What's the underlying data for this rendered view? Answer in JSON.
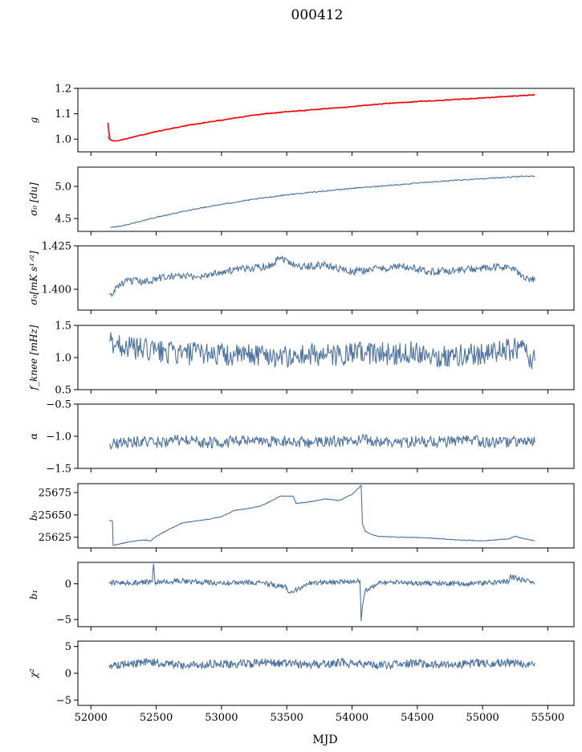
{
  "figure": {
    "title": "000412",
    "xlabel": "MJD"
  },
  "chart_data": {
    "type": "line",
    "title": "000412",
    "xlabel": "MJD",
    "xlim": [
      51900,
      55700
    ],
    "x_ticks": [
      52000,
      52500,
      53000,
      53500,
      54000,
      54500,
      55000,
      55500
    ],
    "x_tick_labels": [
      "52000",
      "52500",
      "53000",
      "53500",
      "54000",
      "54500",
      "55000",
      "55500"
    ],
    "colors": {
      "series": "#4c72a0",
      "fit": "#ff0000"
    },
    "panels": [
      {
        "id": "g",
        "ylabel": "g",
        "ylim": [
          0.95,
          1.2
        ],
        "y_ticks": [
          1.0,
          1.1,
          1.2
        ],
        "y_tick_labels": [
          "1.0",
          "1.1",
          "1.2"
        ],
        "series": [
          {
            "x": [
              52130,
              52140,
              52160,
              52200,
              52300,
              52500,
              52750,
              53000,
              53250,
              53500,
              53750,
              54000,
              54250,
              54500,
              54750,
              55000,
              55250,
              55400
            ],
            "y": [
              1.01,
              1.0,
              0.995,
              0.993,
              1.005,
              1.03,
              1.055,
              1.075,
              1.095,
              1.108,
              1.118,
              1.128,
              1.14,
              1.148,
              1.155,
              1.162,
              1.17,
              1.175
            ]
          },
          {
            "x": [
              52130,
              52135,
              52145,
              52160,
              52200,
              52300,
              52500,
              52750,
              53000,
              53250,
              53500,
              53750,
              54000,
              54250,
              54500,
              54750,
              55000,
              55250,
              55400
            ],
            "y": [
              1.065,
              1.04,
              1.0,
              0.995,
              0.993,
              1.005,
              1.03,
              1.055,
              1.075,
              1.095,
              1.108,
              1.118,
              1.128,
              1.14,
              1.148,
              1.155,
              1.162,
              1.17,
              1.175
            ]
          }
        ]
      },
      {
        "id": "sigma0_du",
        "ylabel": "σ₀ [du]",
        "ylim": [
          4.3,
          5.3
        ],
        "y_ticks": [
          4.5,
          5.0
        ],
        "y_tick_labels": [
          "4.5",
          "5.0"
        ],
        "series": [
          {
            "x": [
              52150,
              52250,
              52500,
              52750,
              53000,
              53250,
              53500,
              53750,
              54000,
              54250,
              54500,
              54750,
              55000,
              55250,
              55400
            ],
            "y": [
              4.36,
              4.39,
              4.52,
              4.63,
              4.72,
              4.8,
              4.87,
              4.92,
              4.97,
              5.01,
              5.05,
              5.09,
              5.12,
              5.15,
              5.16
            ]
          }
        ]
      },
      {
        "id": "sigma0_mK",
        "ylabel": "σ₀[mK s¹ᐟ²]",
        "ylim": [
          1.388,
          1.425
        ],
        "y_ticks": [
          1.4,
          1.425
        ],
        "y_tick_labels": [
          "1.400",
          "1.425"
        ],
        "series": [
          {
            "x": [
              52140,
              52160,
              52200,
              52300,
              52400,
              52600,
              52800,
              53000,
              53200,
              53400,
              53430,
              53600,
              53800,
              54000,
              54200,
              54400,
              54600,
              54800,
              55000,
              55200,
              55300,
              55400
            ],
            "y": [
              1.397,
              1.396,
              1.402,
              1.405,
              1.404,
              1.408,
              1.407,
              1.41,
              1.412,
              1.414,
              1.419,
              1.413,
              1.414,
              1.41,
              1.412,
              1.413,
              1.41,
              1.411,
              1.412,
              1.413,
              1.408,
              1.405
            ]
          }
        ]
      },
      {
        "id": "fknee",
        "ylabel": "f_knee [mHz]",
        "ylim": [
          0.5,
          1.5
        ],
        "y_ticks": [
          0.5,
          1.0,
          1.5
        ],
        "y_tick_labels": [
          "0.5",
          "1.0",
          "1.5"
        ],
        "series": [
          {
            "x": [
              52140,
              52300,
              52500,
              52700,
              52900,
              53100,
              53300,
              53500,
              53700,
              53900,
              54100,
              54300,
              54500,
              54700,
              54900,
              55100,
              55300,
              55400
            ],
            "y": [
              1.25,
              1.15,
              1.1,
              1.05,
              1.08,
              1.02,
              1.06,
              1.0,
              1.05,
              1.02,
              1.08,
              1.05,
              1.1,
              1.0,
              1.05,
              1.08,
              1.15,
              0.95
            ]
          }
        ]
      },
      {
        "id": "alpha",
        "ylabel": "α",
        "ylim": [
          -1.5,
          -0.5
        ],
        "y_ticks": [
          -1.5,
          -1.0,
          -0.5
        ],
        "y_tick_labels": [
          "−1.5",
          "−1.0",
          "−0.5"
        ],
        "series": [
          {
            "x": [
              52140,
              52300,
              52500,
              52700,
              52900,
              53100,
              53300,
              53500,
              53700,
              53900,
              54100,
              54300,
              54500,
              54700,
              54900,
              55100,
              55300,
              55400
            ],
            "y": [
              -1.12,
              -1.08,
              -1.1,
              -1.06,
              -1.1,
              -1.08,
              -1.09,
              -1.07,
              -1.1,
              -1.08,
              -1.06,
              -1.1,
              -1.08,
              -1.09,
              -1.07,
              -1.1,
              -1.08,
              -1.1
            ]
          }
        ]
      },
      {
        "id": "b0",
        "ylabel": "b₀",
        "ylim": [
          25613,
          25685
        ],
        "y_ticks": [
          25625,
          25650,
          25675
        ],
        "y_tick_labels": [
          "25625",
          "25650",
          "25675"
        ],
        "series": [
          {
            "x": [
              52140,
              52165,
              52170,
              52200,
              52300,
              52400,
              52460,
              52500,
              52600,
              52700,
              52800,
              52900,
              53000,
              53100,
              53200,
              53300,
              53400,
              53450,
              53550,
              53570,
              53650,
              53800,
              53900,
              54000,
              54070,
              54080,
              54100,
              54150,
              54200,
              54400,
              54600,
              54800,
              55000,
              55200,
              55250,
              55300,
              55400
            ],
            "y": [
              25644,
              25643,
              25616,
              25617,
              25620,
              25622,
              25621,
              25626,
              25634,
              25641,
              25643,
              25645,
              25648,
              25655,
              25657,
              25660,
              25667,
              25671,
              25671,
              25663,
              25664,
              25668,
              25666,
              25673,
              25683,
              25640,
              25632,
              25628,
              25626,
              25625,
              25624,
              25622,
              25621,
              25623,
              25626,
              25624,
              25621
            ]
          }
        ]
      },
      {
        "id": "b1",
        "ylabel": "b₁",
        "ylim": [
          -6,
          3
        ],
        "y_ticks": [
          -5,
          0
        ],
        "y_tick_labels": [
          "−5",
          "0"
        ],
        "series": [
          {
            "x": [
              52140,
              52300,
              52470,
              52480,
              52490,
              52700,
              53000,
              53300,
              53500,
              53520,
              53700,
              54000,
              54060,
              54070,
              54080,
              54090,
              54100,
              54150,
              54200,
              54400,
              54700,
              55000,
              55200,
              55210,
              55400
            ],
            "y": [
              0.2,
              0.1,
              0.3,
              2.8,
              0.2,
              0.4,
              0.1,
              0.2,
              -0.5,
              -1.2,
              0.2,
              0.3,
              0.5,
              -5.2,
              -3.0,
              -2.0,
              -1.0,
              -0.5,
              0.1,
              0.2,
              0.0,
              0.1,
              0.3,
              1.0,
              0.1
            ]
          }
        ]
      },
      {
        "id": "chi2",
        "ylabel": "χ²",
        "ylim": [
          -6,
          6
        ],
        "y_ticks": [
          -5,
          0,
          5
        ],
        "y_tick_labels": [
          "−5",
          "0",
          "5"
        ],
        "series": [
          {
            "x": [
              52140,
              52300,
              52500,
              52700,
              52900,
              53100,
              53300,
              53500,
              53700,
              53900,
              54100,
              54300,
              54500,
              54700,
              54900,
              55100,
              55300,
              55400
            ],
            "y": [
              1.5,
              1.8,
              2.0,
              1.4,
              1.7,
              1.6,
              2.0,
              1.8,
              1.6,
              2.0,
              1.7,
              1.5,
              1.9,
              1.6,
              1.8,
              2.0,
              1.7,
              1.9
            ]
          }
        ]
      }
    ]
  }
}
